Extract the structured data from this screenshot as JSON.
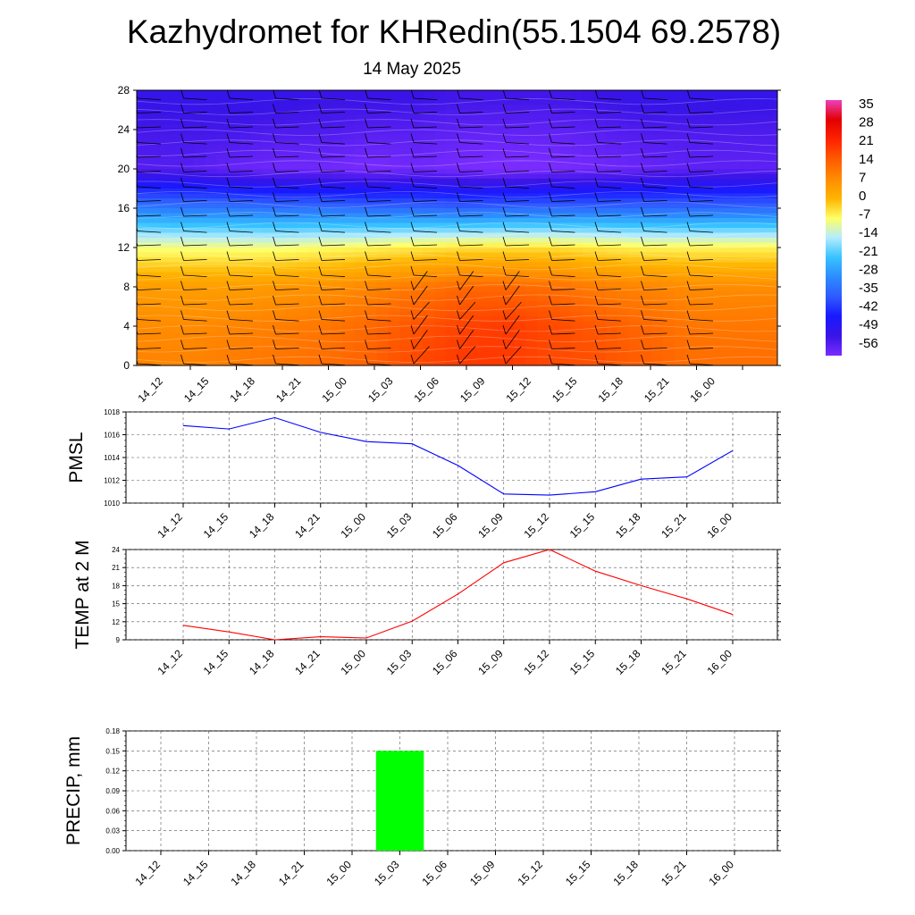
{
  "title": "Kazhydromet for KHRedin(55.1504 69.2578)",
  "subtitle": "14 May 2025",
  "time_labels": [
    "14_12",
    "14_15",
    "14_18",
    "14_21",
    "15_00",
    "15_03",
    "15_06",
    "15_09",
    "15_12",
    "15_15",
    "15_18",
    "15_21",
    "16_00"
  ],
  "colors": {
    "pmsl": "#0000ff",
    "temp": "#ff0000",
    "precip": "#00ff00"
  },
  "chart_data": [
    {
      "type": "heatmap",
      "title": "",
      "ylim": [
        0,
        28
      ],
      "yticks": [
        "0",
        "4",
        "8",
        "12",
        "16",
        "20",
        "24",
        "28"
      ],
      "colorbar_labels": [
        "35",
        "28",
        "21",
        "14",
        "7",
        "0",
        "-7",
        "-14",
        "-21",
        "-28",
        "-35",
        "-42",
        "-49",
        "-56"
      ],
      "colormap": [
        "#ee3fbe",
        "#e20000",
        "#ff2200",
        "#ff5a00",
        "#ff8c00",
        "#ffb400",
        "#ffff66",
        "#b4ecff",
        "#37c3ff",
        "#2c8cff",
        "#2f5aff",
        "#1919ff",
        "#3a14e6",
        "#7a2cff"
      ],
      "surface": "temperature contours with wind barbs",
      "rows": [
        {
          "h": 1,
          "values": [
            8,
            8,
            9,
            10,
            11,
            13,
            16,
            18,
            18,
            16,
            15,
            13,
            11
          ]
        },
        {
          "h": 4,
          "values": [
            7,
            7,
            8,
            9,
            10,
            12,
            15,
            17,
            18,
            16,
            14,
            12,
            10
          ]
        },
        {
          "h": 8,
          "values": [
            4,
            4,
            4,
            5,
            6,
            8,
            10,
            12,
            12,
            11,
            9,
            8,
            7
          ]
        },
        {
          "h": 12,
          "values": [
            -8,
            -8,
            -8,
            -8,
            -7,
            -6,
            -5,
            -4,
            -4,
            -4,
            -5,
            -6,
            -6
          ]
        },
        {
          "h": 16,
          "values": [
            -30,
            -31,
            -31,
            -32,
            -32,
            -33,
            -33,
            -34,
            -33,
            -33,
            -33,
            -33,
            -33
          ]
        },
        {
          "h": 20,
          "values": [
            -52,
            -52,
            -54,
            -55,
            -55,
            -56,
            -55,
            -56,
            -57,
            -56,
            -55,
            -54,
            -53
          ]
        },
        {
          "h": 24,
          "values": [
            -50,
            -50,
            -50,
            -51,
            -51,
            -52,
            -52,
            -53,
            -53,
            -53,
            -52,
            -51,
            -51
          ]
        },
        {
          "h": 27,
          "values": [
            -48,
            -48,
            -48,
            -48,
            -49,
            -49,
            -49,
            -50,
            -50,
            -50,
            -49,
            -48,
            -48
          ]
        }
      ]
    },
    {
      "type": "line",
      "ylabel": "PMSL",
      "ylim": [
        1010,
        1018
      ],
      "yticks": [
        "1010",
        "1012",
        "1014",
        "1016",
        "1018"
      ],
      "series": [
        {
          "values": [
            1016.8,
            1016.5,
            1017.5,
            1016.2,
            1015.4,
            1015.2,
            1013.3,
            1010.8,
            1010.7,
            1011.0,
            1012.1,
            1012.3,
            1014.6
          ]
        }
      ]
    },
    {
      "type": "line",
      "ylabel": "TEMP at 2 M",
      "ylim": [
        9,
        24
      ],
      "yticks": [
        "9",
        "12",
        "15",
        "18",
        "21",
        "24"
      ],
      "series": [
        {
          "values": [
            11.4,
            10.3,
            9.0,
            9.5,
            9.3,
            12.1,
            16.6,
            21.8,
            24.0,
            20.4,
            18.0,
            15.8,
            13.2
          ]
        }
      ]
    },
    {
      "type": "bar",
      "ylabel": "PRECIP, mm",
      "ylim": [
        0,
        0.18
      ],
      "yticks": [
        "0.00",
        "0.03",
        "0.06",
        "0.09",
        "0.12",
        "0.15",
        "0.18"
      ],
      "values": [
        0,
        0,
        0,
        0,
        0,
        0.15,
        0,
        0,
        0,
        0,
        0,
        0,
        0
      ]
    }
  ]
}
